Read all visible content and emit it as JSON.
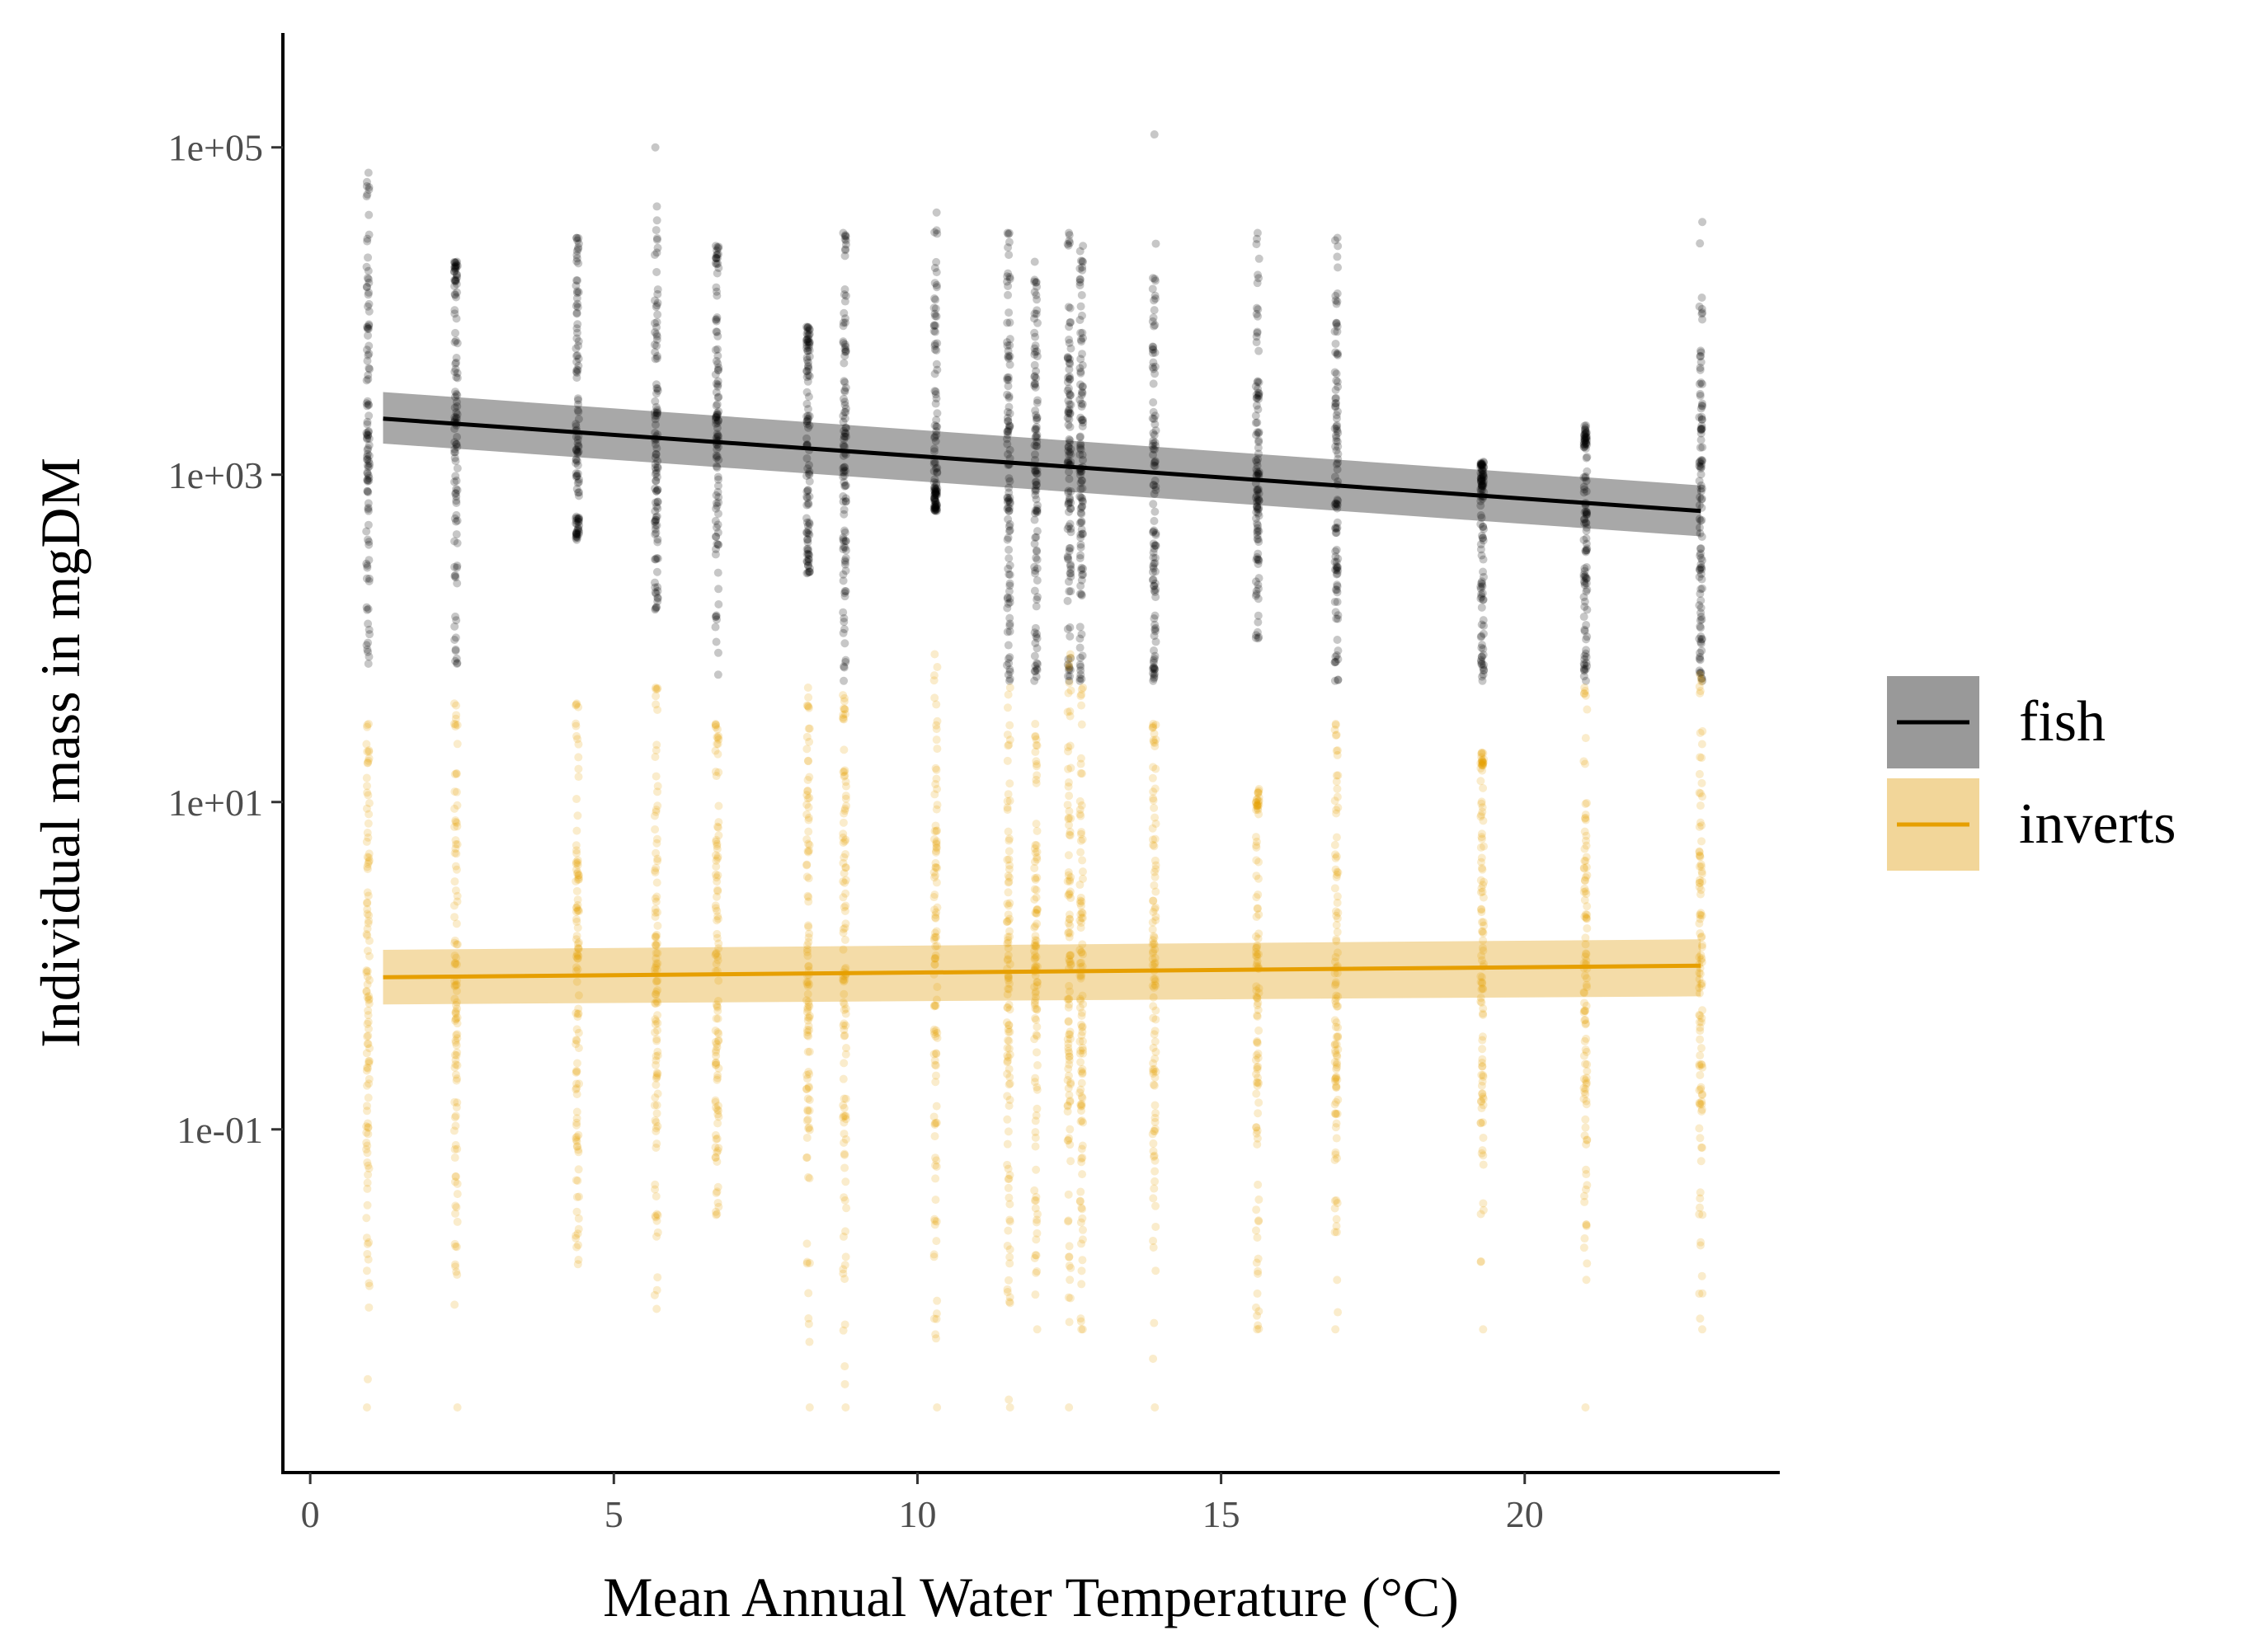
{
  "chart_data": {
    "type": "scatter",
    "xlabel": "Mean Annual Water Temperature (°C)",
    "ylabel": "Individual mass in mgDM",
    "xlim": [
      -0.45,
      24.2
    ],
    "x_ticks": [
      0,
      5,
      10,
      15,
      20
    ],
    "x_tick_labels": [
      "0",
      "5",
      "10",
      "15",
      "20"
    ],
    "y_scale": "log10",
    "ylim": [
      0.0008,
      500000
    ],
    "y_ticks": [
      100000,
      1000,
      10,
      0.1
    ],
    "y_tick_labels": [
      "1e+05",
      "1e+03",
      "1e+01",
      "1e-01"
    ],
    "grid": false,
    "legend_position": "right",
    "site_temperatures": [
      0.95,
      2.4,
      4.4,
      5.7,
      6.7,
      8.2,
      8.8,
      10.3,
      11.5,
      11.95,
      12.5,
      12.7,
      13.9,
      15.6,
      16.9,
      19.3,
      21.0,
      22.9
    ],
    "series": [
      {
        "name": "fish",
        "color": "#000000",
        "band_color": "#999999",
        "fit": {
          "x": [
            1.2,
            22.9
          ],
          "y": [
            2200,
            600
          ],
          "ci_low": [
            1550,
            420
          ],
          "ci_high": [
            3200,
            860
          ]
        },
        "points": [
          {
            "x": 0.95,
            "min": 70,
            "max": 70000
          },
          {
            "x": 2.4,
            "min": 70,
            "max": 20000
          },
          {
            "x": 4.4,
            "min": 400,
            "max": 28000
          },
          {
            "x": 5.7,
            "min": 150,
            "max": 100000
          },
          {
            "x": 6.7,
            "min": 60,
            "max": 25000
          },
          {
            "x": 8.2,
            "min": 250,
            "max": 8000
          },
          {
            "x": 8.8,
            "min": 55,
            "max": 30000
          },
          {
            "x": 10.3,
            "min": 600,
            "max": 40000
          },
          {
            "x": 11.5,
            "min": 55,
            "max": 30000
          },
          {
            "x": 11.95,
            "min": 55,
            "max": 20000
          },
          {
            "x": 12.5,
            "min": 55,
            "max": 30000
          },
          {
            "x": 12.7,
            "min": 55,
            "max": 25000
          },
          {
            "x": 13.9,
            "min": 55,
            "max": 120000
          },
          {
            "x": 15.6,
            "min": 100,
            "max": 30000
          },
          {
            "x": 16.9,
            "min": 55,
            "max": 28000
          },
          {
            "x": 19.3,
            "min": 55,
            "max": 1200
          },
          {
            "x": 21.0,
            "min": 55,
            "max": 2000
          },
          {
            "x": 22.9,
            "min": 55,
            "max": 35000
          }
        ]
      },
      {
        "name": "inverts",
        "color": "#E69F00",
        "band_color": "#F2D699",
        "fit": {
          "x": [
            1.2,
            22.9
          ],
          "y": [
            0.85,
            1.0
          ],
          "ci_low": [
            0.58,
            0.65
          ],
          "ci_high": [
            1.25,
            1.45
          ]
        },
        "points": [
          {
            "x": 0.95,
            "min": 0.002,
            "max": 30
          },
          {
            "x": 2.4,
            "min": 0.002,
            "max": 40
          },
          {
            "x": 4.4,
            "min": 0.015,
            "max": 40
          },
          {
            "x": 5.7,
            "min": 0.008,
            "max": 50
          },
          {
            "x": 6.7,
            "min": 0.03,
            "max": 30
          },
          {
            "x": 8.2,
            "min": 0.002,
            "max": 50
          },
          {
            "x": 8.8,
            "min": 0.002,
            "max": 45
          },
          {
            "x": 10.3,
            "min": 0.002,
            "max": 80
          },
          {
            "x": 11.5,
            "min": 0.002,
            "max": 50
          },
          {
            "x": 11.95,
            "min": 0.006,
            "max": 30
          },
          {
            "x": 12.5,
            "min": 0.002,
            "max": 80
          },
          {
            "x": 12.7,
            "min": 0.006,
            "max": 50
          },
          {
            "x": 13.9,
            "min": 0.002,
            "max": 30
          },
          {
            "x": 15.6,
            "min": 0.006,
            "max": 12
          },
          {
            "x": 16.9,
            "min": 0.006,
            "max": 30
          },
          {
            "x": 19.3,
            "min": 0.006,
            "max": 20
          },
          {
            "x": 21.0,
            "min": 0.002,
            "max": 50
          },
          {
            "x": 22.9,
            "min": 0.006,
            "max": 60
          }
        ]
      }
    ]
  }
}
